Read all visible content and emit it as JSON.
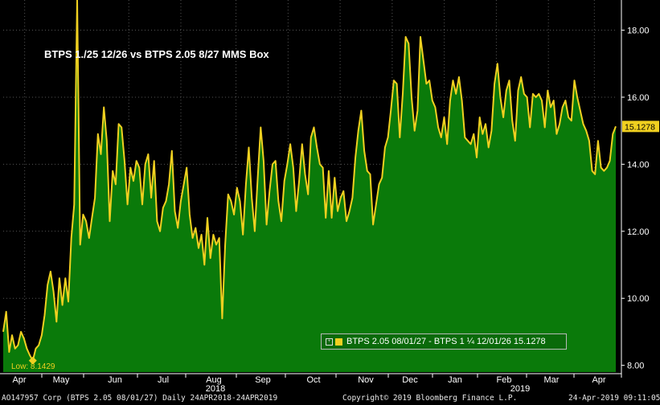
{
  "chart_data": {
    "type": "area",
    "title": "BTPS 1./25 12/26 vs BTPS 2.05 8/27 MMS Box",
    "ylim": [
      7.8,
      18.9
    ],
    "yticks": [
      "8.00",
      "10.00",
      "12.00",
      "14.00",
      "16.00",
      "18.00"
    ],
    "ytick_values": [
      8,
      10,
      12,
      14,
      16,
      18
    ],
    "month_labels": [
      "Apr",
      "May",
      "Jun",
      "Jul",
      "Aug",
      "Sep",
      "Oct",
      "Nov",
      "Dec",
      "Jan",
      "Feb",
      "Mar",
      "Apr"
    ],
    "year_labels": [
      "2018",
      "2019"
    ],
    "grid": true,
    "series": [
      {
        "name": "BTPS 2.05 08/01/27 - BTPS 1 ¼ 12/01/26",
        "color": "#f0d020",
        "fill": "#0a7a0a",
        "last_value": "15.1278",
        "values": [
          9.0,
          9.6,
          8.4,
          8.9,
          8.5,
          8.6,
          9.0,
          8.8,
          8.5,
          8.3,
          8.1429,
          8.5,
          8.6,
          8.9,
          9.5,
          10.4,
          10.8,
          10.2,
          9.3,
          10.6,
          9.8,
          10.6,
          9.9,
          11.8,
          12.8,
          18.9,
          11.6,
          12.5,
          12.3,
          11.8,
          12.4,
          13.0,
          14.9,
          14.3,
          15.7,
          14.7,
          12.3,
          13.8,
          13.4,
          15.2,
          15.1,
          14.1,
          12.8,
          13.9,
          13.5,
          14.1,
          13.9,
          12.8,
          14.0,
          14.3,
          13.0,
          14.1,
          12.3,
          12.0,
          12.7,
          12.9,
          13.4,
          14.4,
          12.6,
          12.1,
          12.9,
          13.4,
          13.9,
          12.5,
          11.8,
          12.1,
          11.5,
          11.9,
          11.0,
          12.4,
          11.2,
          11.9,
          11.6,
          11.8,
          9.4,
          11.6,
          13.1,
          12.9,
          12.5,
          13.3,
          12.9,
          11.9,
          13.4,
          14.5,
          13.0,
          12.0,
          13.6,
          15.1,
          14.1,
          12.2,
          13.2,
          14.0,
          14.1,
          12.9,
          12.3,
          13.5,
          14.0,
          14.6,
          13.9,
          12.6,
          13.5,
          14.6,
          13.7,
          13.1,
          14.8,
          15.1,
          14.5,
          14.0,
          13.9,
          12.4,
          13.8,
          12.4,
          13.6,
          12.6,
          13.0,
          13.2,
          12.3,
          12.6,
          13.0,
          14.2,
          15.0,
          15.6,
          14.4,
          13.8,
          13.7,
          12.2,
          12.8,
          13.4,
          13.6,
          14.5,
          14.8,
          15.6,
          16.5,
          16.4,
          14.8,
          16.1,
          17.8,
          17.6,
          16.0,
          15.0,
          15.6,
          17.8,
          17.1,
          16.4,
          16.5,
          15.9,
          15.7,
          15.1,
          14.8,
          15.4,
          14.6,
          15.9,
          16.5,
          16.1,
          16.6,
          15.9,
          14.8,
          14.7,
          14.6,
          14.9,
          14.2,
          15.4,
          14.9,
          15.2,
          14.5,
          15.0,
          16.4,
          17.0,
          16.0,
          15.4,
          16.2,
          16.5,
          15.3,
          14.7,
          16.2,
          16.6,
          16.1,
          16.0,
          15.1,
          16.1,
          16.0,
          16.1,
          15.9,
          15.1,
          16.2,
          15.7,
          15.9,
          14.9,
          15.2,
          15.7,
          15.9,
          15.4,
          15.3,
          16.5,
          16.0,
          15.6,
          15.2,
          15.0,
          14.7,
          13.8,
          13.7,
          14.7,
          13.9,
          13.8,
          13.9,
          14.1,
          14.9,
          15.1278
        ]
      }
    ],
    "annotations": {
      "low_label": "Low: 8.1429"
    }
  },
  "legend": {
    "toggle": "+",
    "label": "BTPS 2.05 08/01/27 - BTPS 1 ¼ 12/01/26  15.1278"
  },
  "footer": {
    "left": "AO147957 Corp (BTPS 2.05 08/01/27)  Daily 24APR2018-24APR2019",
    "center": "Copyright© 2019 Bloomberg Finance L.P.",
    "right": "24-Apr-2019 09:11:05"
  }
}
